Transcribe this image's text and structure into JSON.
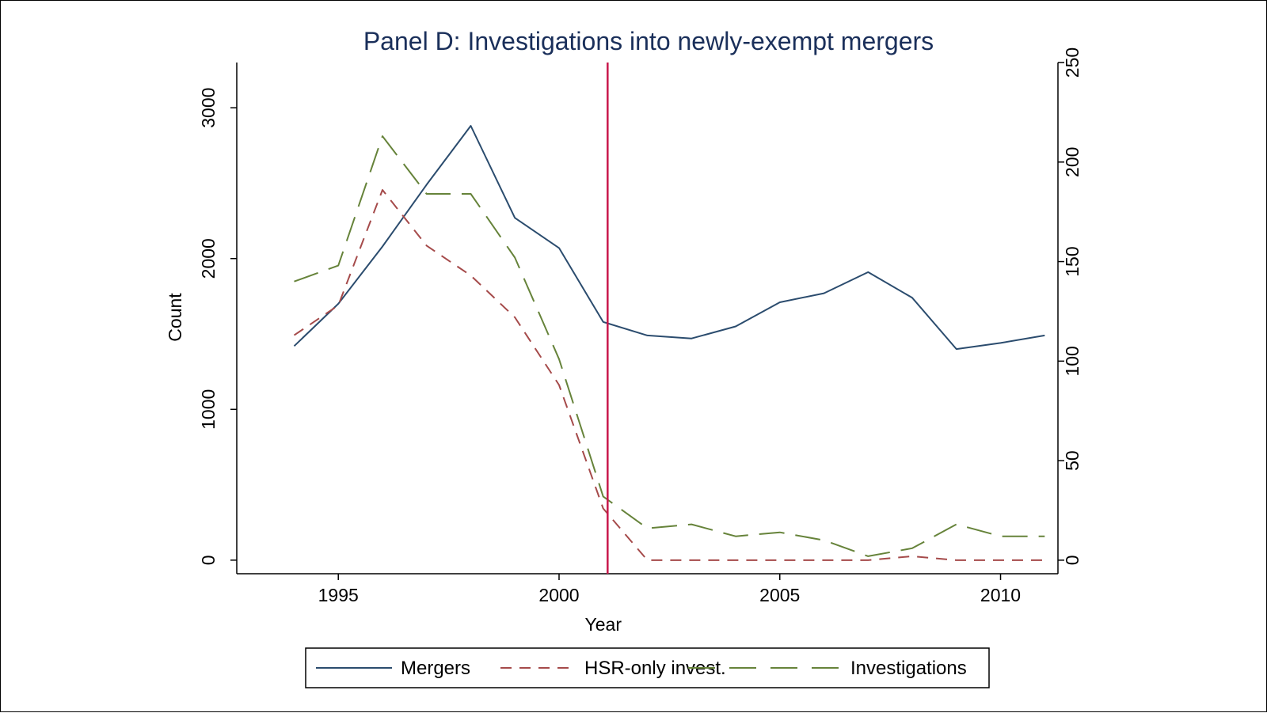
{
  "chart_data": {
    "type": "line",
    "title": "Panel D: Investigations into newly-exempt mergers",
    "xlabel": "Year",
    "ylabel_left": "Count",
    "ylabel_right": "",
    "xlim": [
      1992.7,
      2011.3
    ],
    "ylim_left": [
      -90,
      3300
    ],
    "ylim_right": [
      -6.8,
      250
    ],
    "x_ticks": [
      1995,
      2000,
      2005,
      2010
    ],
    "y_ticks_left": [
      0,
      1000,
      2000,
      3000
    ],
    "y_ticks_right": [
      0,
      50,
      100,
      150,
      200,
      250
    ],
    "vertical_line_at": 2001.1,
    "x": [
      1994,
      1995,
      1996,
      1997,
      1998,
      1999,
      2000,
      2001,
      2002,
      2003,
      2004,
      2005,
      2006,
      2007,
      2008,
      2009,
      2010,
      2011
    ],
    "series": [
      {
        "name": "Mergers",
        "axis": "left",
        "style": "solid",
        "color": "#2b4c6e",
        "values": [
          1420,
          1700,
          2080,
          2490,
          2880,
          2270,
          2070,
          1580,
          1490,
          1470,
          1550,
          1710,
          1770,
          1910,
          1740,
          1400,
          1440,
          1490
        ]
      },
      {
        "name": "HSR-only invest.",
        "axis": "right",
        "style": "short-dash",
        "color": "#a54a4a",
        "values": [
          113,
          128,
          186,
          158,
          143,
          122,
          88,
          26,
          0,
          0,
          0,
          0,
          0,
          0,
          2,
          0,
          0,
          0
        ]
      },
      {
        "name": "Investigations",
        "axis": "right",
        "style": "long-dash",
        "color": "#66833a",
        "values": [
          140,
          148,
          213,
          184,
          184,
          152,
          101,
          32,
          16,
          18,
          12,
          14,
          10,
          2,
          6,
          18,
          12,
          12
        ]
      }
    ],
    "legend": [
      "Mergers",
      "HSR-only invest.",
      "Investigations"
    ],
    "legend_position": "bottom",
    "colors": {
      "vline": "#c8174b",
      "title": "#1a2f5a"
    }
  }
}
